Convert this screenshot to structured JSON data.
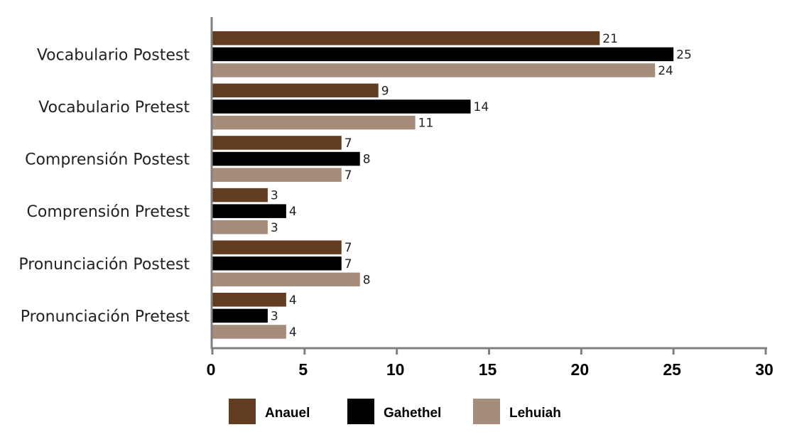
{
  "chart_data": {
    "type": "bar",
    "orientation": "horizontal",
    "title": "",
    "xlabel": "",
    "ylabel": "",
    "xlim": [
      0,
      30
    ],
    "x_ticks": [
      0,
      5,
      10,
      15,
      20,
      25,
      30
    ],
    "grid": false,
    "legend_position": "bottom",
    "categories": [
      "Vocabulario Postest",
      "Vocabulario Pretest",
      "Comprensión Postest",
      "Comprensión Pretest",
      "Pronunciación Postest",
      "Pronunciación Pretest"
    ],
    "series": [
      {
        "name": "Anauel",
        "color": "#633d22",
        "values": [
          21,
          9,
          7,
          3,
          7,
          4
        ]
      },
      {
        "name": "Gahethel",
        "color": "#000000",
        "values": [
          25,
          14,
          8,
          4,
          7,
          3
        ]
      },
      {
        "name": "Lehuiah",
        "color": "#a68c7b",
        "values": [
          24,
          11,
          7,
          3,
          8,
          4
        ]
      }
    ]
  }
}
